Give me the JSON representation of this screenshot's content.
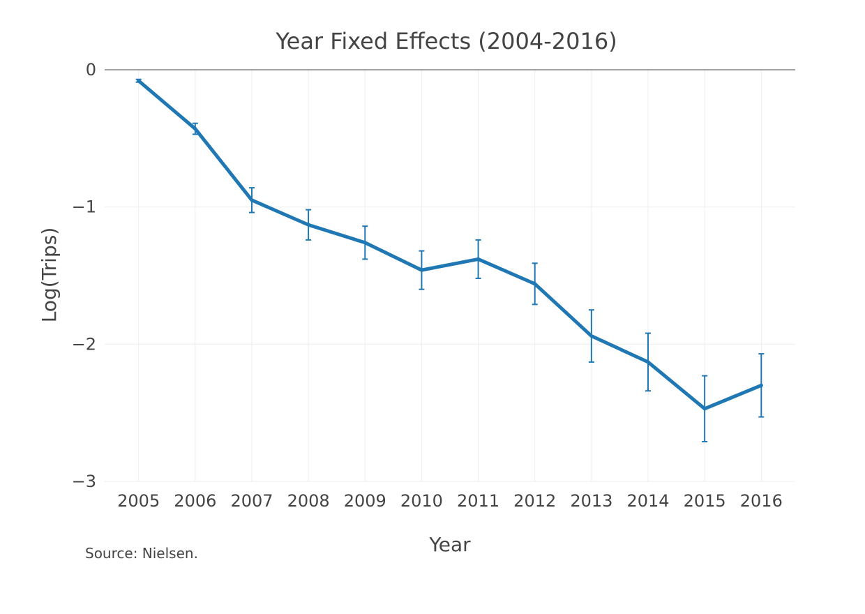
{
  "chart_data": {
    "type": "line",
    "title": "Year Fixed Effects (2004-2016)",
    "xlabel": "Year",
    "ylabel": "Log(Trips)",
    "x": [
      2005,
      2006,
      2007,
      2008,
      2009,
      2010,
      2011,
      2012,
      2013,
      2014,
      2015,
      2016
    ],
    "series": [
      {
        "values": [
          -0.08,
          -0.43,
          -0.95,
          -1.13,
          -1.26,
          -1.46,
          -1.38,
          -1.56,
          -1.94,
          -2.13,
          -2.47,
          -2.3
        ],
        "error": [
          0.01,
          0.04,
          0.09,
          0.11,
          0.12,
          0.14,
          0.14,
          0.15,
          0.19,
          0.21,
          0.24,
          0.23
        ],
        "color": "#1f77b4"
      }
    ],
    "xticks": [
      "2005",
      "2006",
      "2007",
      "2008",
      "2009",
      "2010",
      "2011",
      "2012",
      "2013",
      "2014",
      "2015",
      "2016"
    ],
    "yticks": [
      0,
      -1,
      -2,
      -3
    ],
    "ytick_labels": [
      "0",
      "−1",
      "−2",
      "−3"
    ],
    "ylim": [
      -3,
      0
    ],
    "xlim": [
      2004.4,
      2016.6
    ],
    "grid": true,
    "annotation": "Source: Nielsen."
  }
}
